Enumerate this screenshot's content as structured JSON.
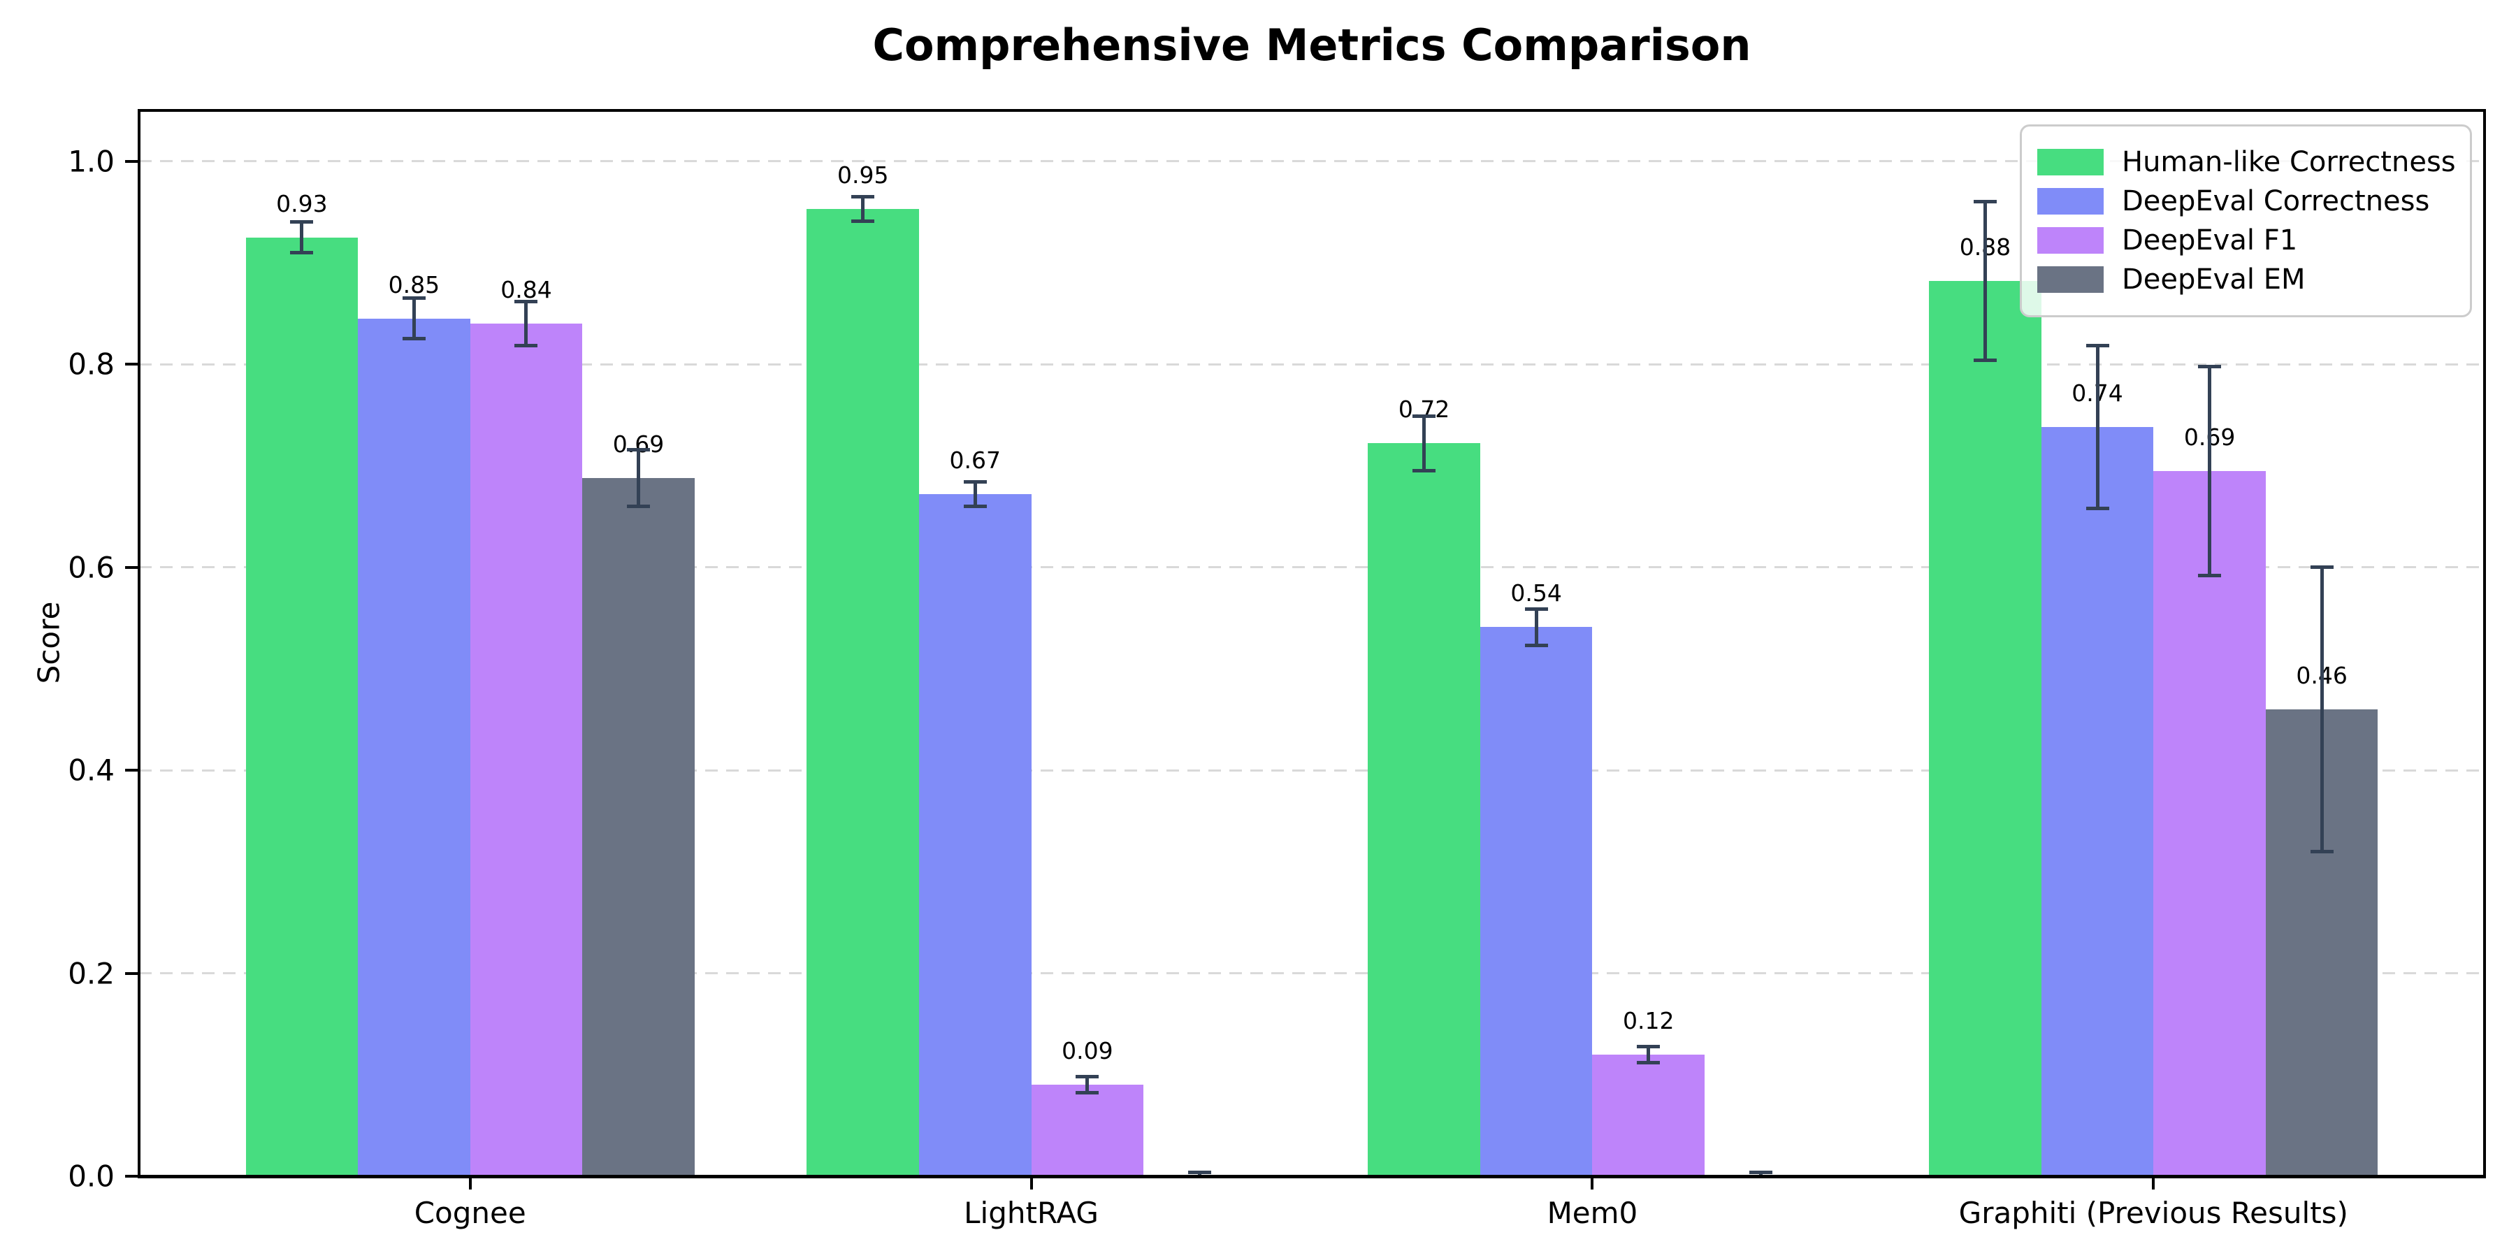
{
  "header": {
    "title": "Comprehensive Metrics Comparison"
  },
  "chart_data": {
    "type": "bar",
    "title": "Comprehensive Metrics Comparison",
    "xlabel": "",
    "ylabel": "Score",
    "categories": [
      "Cognee",
      "LightRAG",
      "Mem0",
      "Graphiti (Previous Results)"
    ],
    "series": [
      {
        "name": "Human-like Correctness",
        "color": "#47dd80",
        "values": [
          0.925,
          0.953,
          0.722,
          0.882
        ],
        "errors": [
          0.015,
          0.012,
          0.027,
          0.078
        ],
        "labels": [
          "0.93",
          "0.95",
          "0.72",
          "0.88"
        ]
      },
      {
        "name": "DeepEval Correctness",
        "color": "#808cf8",
        "values": [
          0.845,
          0.672,
          0.541,
          0.738
        ],
        "errors": [
          0.02,
          0.012,
          0.018,
          0.08
        ],
        "labels": [
          "0.85",
          "0.67",
          "0.54",
          "0.74"
        ]
      },
      {
        "name": "DeepEval F1",
        "color": "#be84fa",
        "values": [
          0.84,
          0.09,
          0.12,
          0.695
        ],
        "errors": [
          0.022,
          0.008,
          0.008,
          0.103
        ],
        "labels": [
          "0.84",
          "0.09",
          "0.12",
          "0.69"
        ]
      },
      {
        "name": "DeepEval EM",
        "color": "#6a7384",
        "values": [
          0.688,
          0.0,
          0.0,
          0.46
        ],
        "errors": [
          0.028,
          0.004,
          0.004,
          0.14
        ],
        "labels": [
          "0.69",
          "",
          "",
          "0.46"
        ]
      }
    ],
    "y_ticks": [
      "0.0",
      "0.2",
      "0.4",
      "0.6",
      "0.8",
      "1.0"
    ],
    "y_tick_values": [
      0.0,
      0.2,
      0.4,
      0.6,
      0.8,
      1.0
    ],
    "ylim": [
      0,
      1.05
    ],
    "grid": "horizontal-dashed",
    "legend_position": "upper right",
    "bar_label_offset": 0.02,
    "error_bar_color": "#334155"
  }
}
